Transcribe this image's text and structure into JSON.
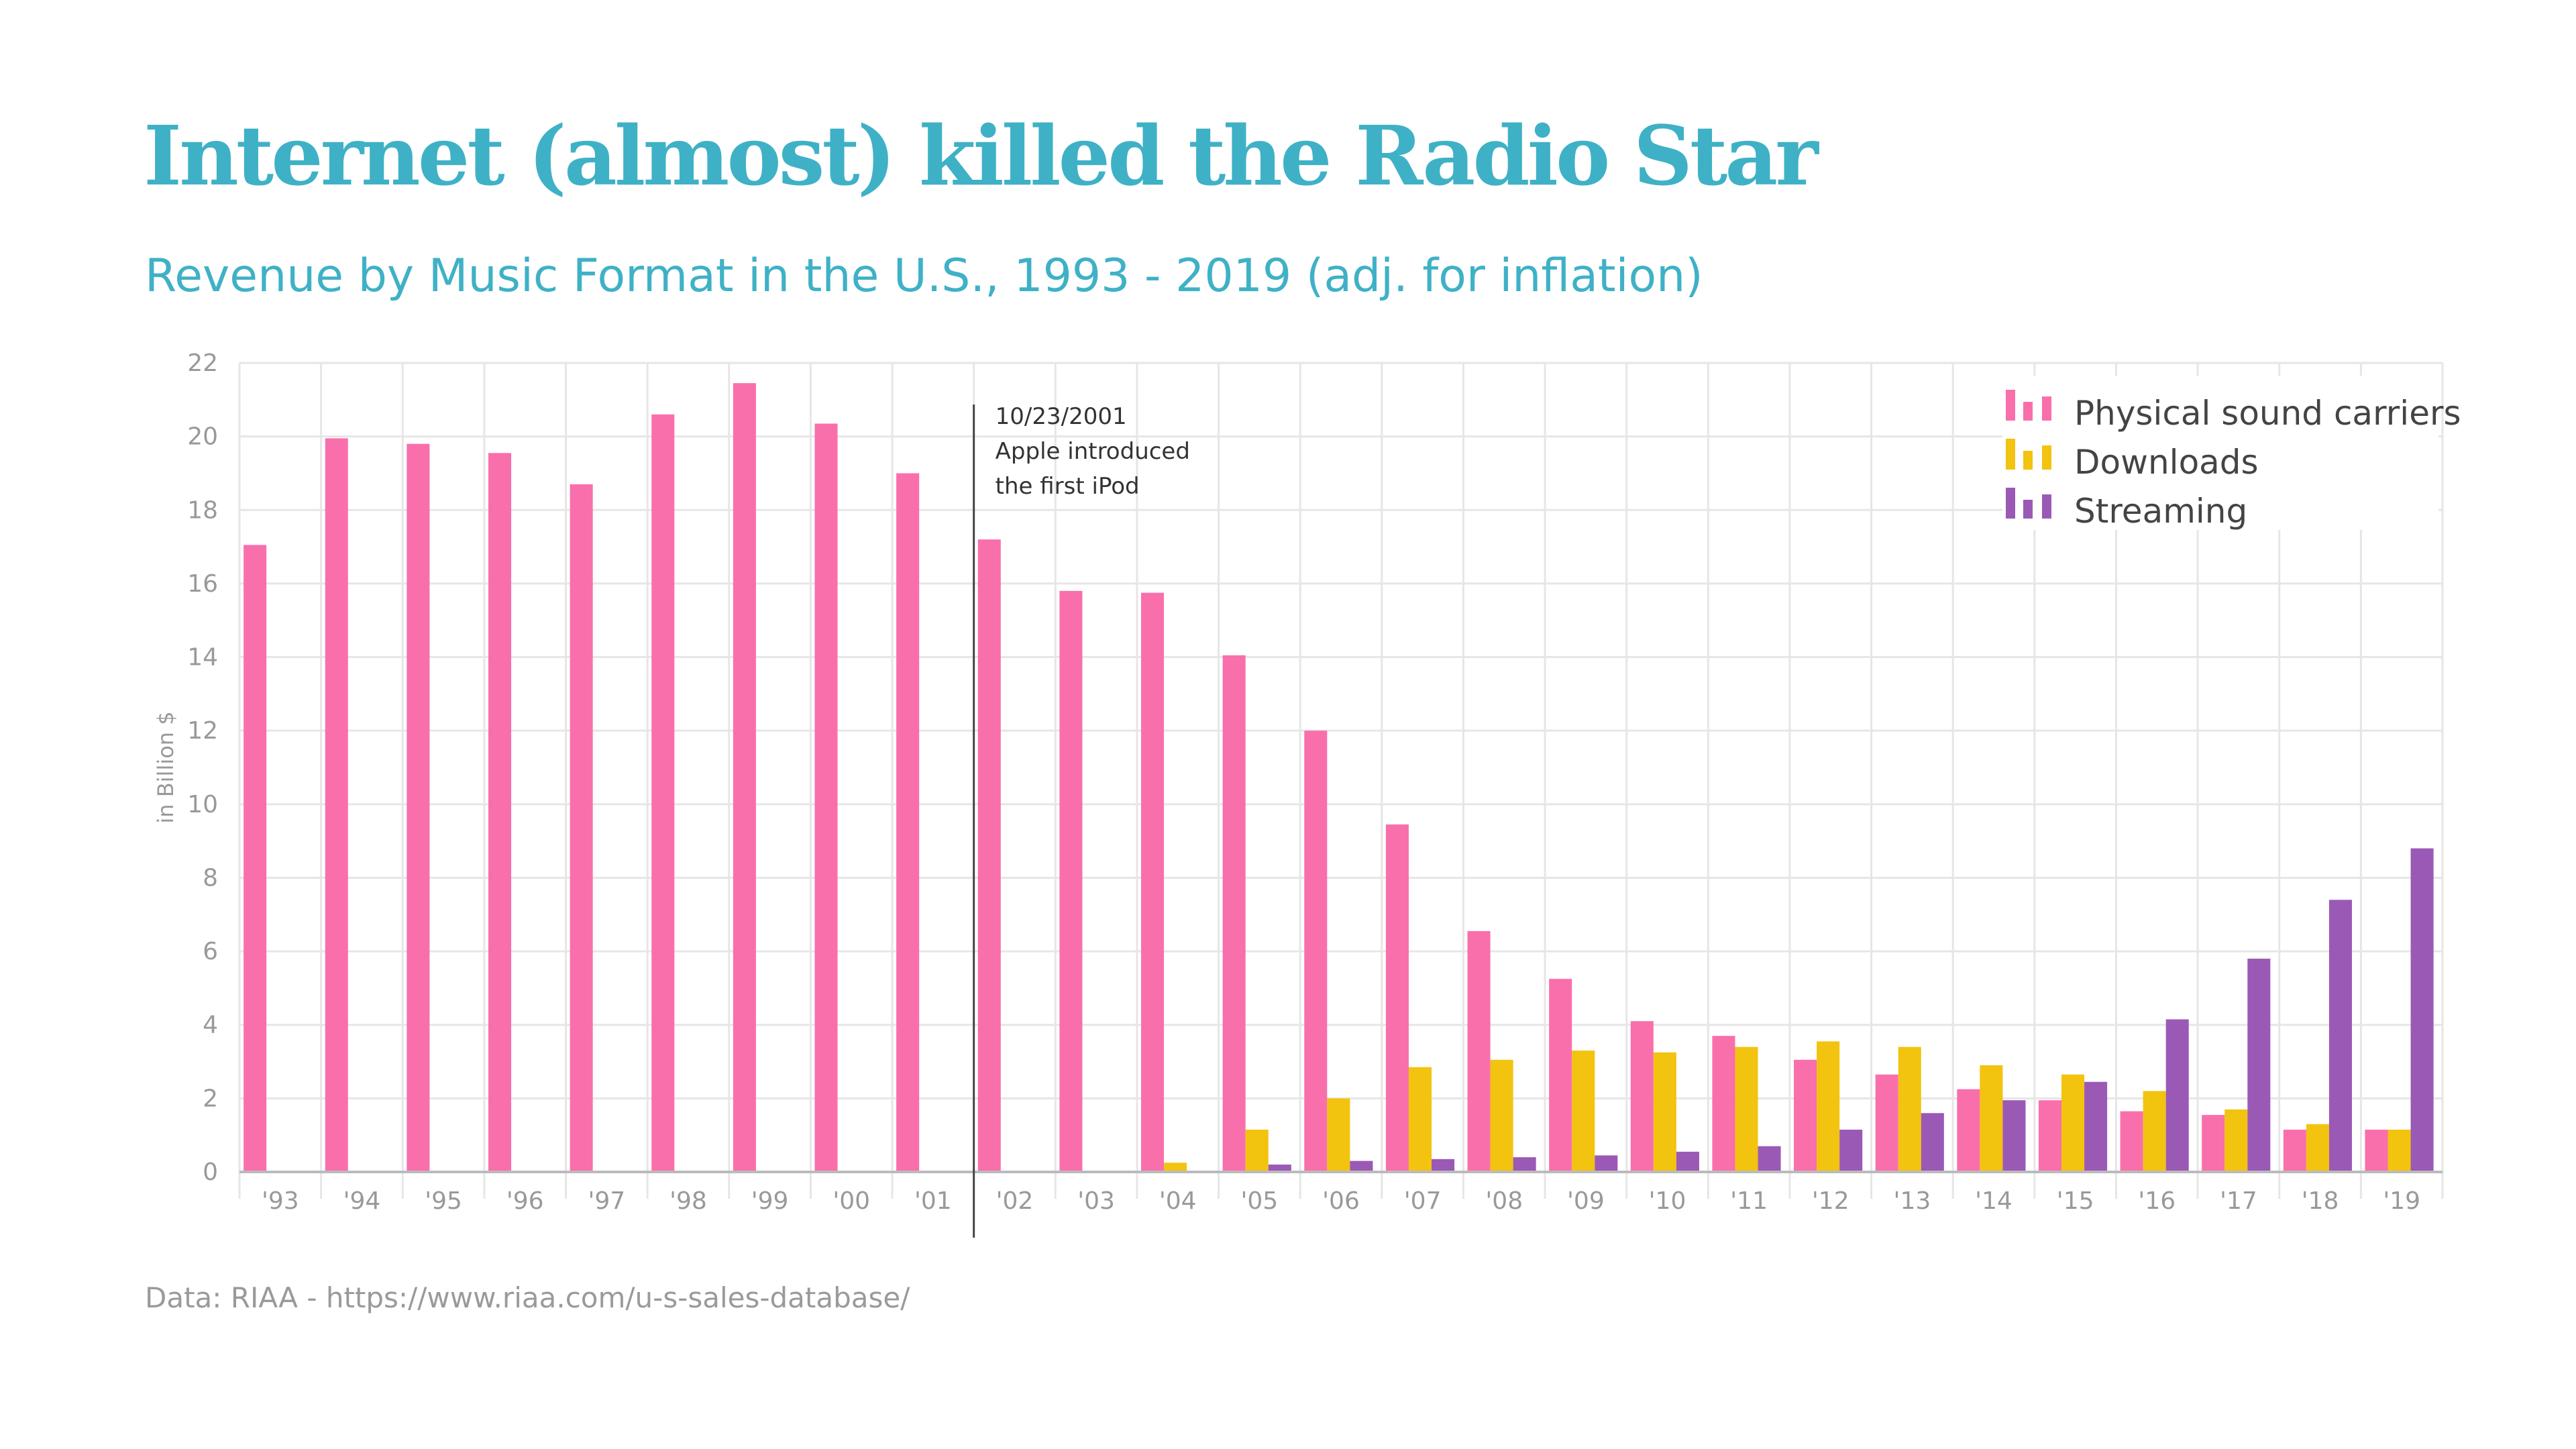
{
  "title": "Internet (almost) killed the Radio Star",
  "subtitle": "Revenue by Music Format in the U.S., 1993 - 2019 (adj. for inflation)",
  "footer": "Data: RIAA - https://www.riaa.com/u-s-sales-database/",
  "chart_data": {
    "type": "bar",
    "title": "Internet (almost) killed the Radio Star",
    "subtitle": "Revenue by Music Format in the U.S., 1993 - 2019 (adj. for inflation)",
    "xlabel": "",
    "ylabel": "in Billion $",
    "ylim": [
      0,
      22
    ],
    "yticks": [
      0,
      2,
      4,
      6,
      8,
      10,
      12,
      14,
      16,
      18,
      20,
      22
    ],
    "grid": true,
    "legend_position": "top-right",
    "categories": [
      "'93",
      "'94",
      "'95",
      "'96",
      "'97",
      "'98",
      "'99",
      "'00",
      "'01",
      "'02",
      "'03",
      "'04",
      "'05",
      "'06",
      "'07",
      "'08",
      "'09",
      "'10",
      "'11",
      "'12",
      "'13",
      "'14",
      "'15",
      "'16",
      "'17",
      "'18",
      "'19"
    ],
    "series": [
      {
        "name": "Physical sound carriers",
        "color": "#f96fab",
        "values": [
          17.05,
          19.95,
          19.8,
          19.55,
          18.7,
          20.6,
          21.45,
          20.35,
          19.0,
          17.2,
          15.8,
          15.75,
          14.05,
          12.0,
          9.45,
          6.55,
          5.25,
          4.1,
          3.7,
          3.05,
          2.65,
          2.25,
          1.95,
          1.65,
          1.55,
          1.15,
          1.15
        ]
      },
      {
        "name": "Downloads",
        "color": "#f2c30f",
        "values": [
          0,
          0,
          0,
          0,
          0,
          0,
          0,
          0,
          0,
          0,
          0,
          0.25,
          1.15,
          2.0,
          2.85,
          3.05,
          3.3,
          3.25,
          3.4,
          3.55,
          3.4,
          2.9,
          2.65,
          2.2,
          1.7,
          1.3,
          1.15
        ]
      },
      {
        "name": "Streaming",
        "color": "#9b59b6",
        "values": [
          0,
          0,
          0,
          0,
          0,
          0,
          0,
          0,
          0,
          0,
          0,
          0.02,
          0.2,
          0.3,
          0.35,
          0.4,
          0.45,
          0.55,
          0.7,
          1.15,
          1.6,
          1.95,
          2.45,
          4.15,
          5.8,
          7.4,
          8.8
        ]
      }
    ],
    "annotation": {
      "between": [
        "'01",
        "'02"
      ],
      "lines": [
        "10/23/2001",
        "Apple introduced",
        "the first iPod"
      ]
    }
  }
}
